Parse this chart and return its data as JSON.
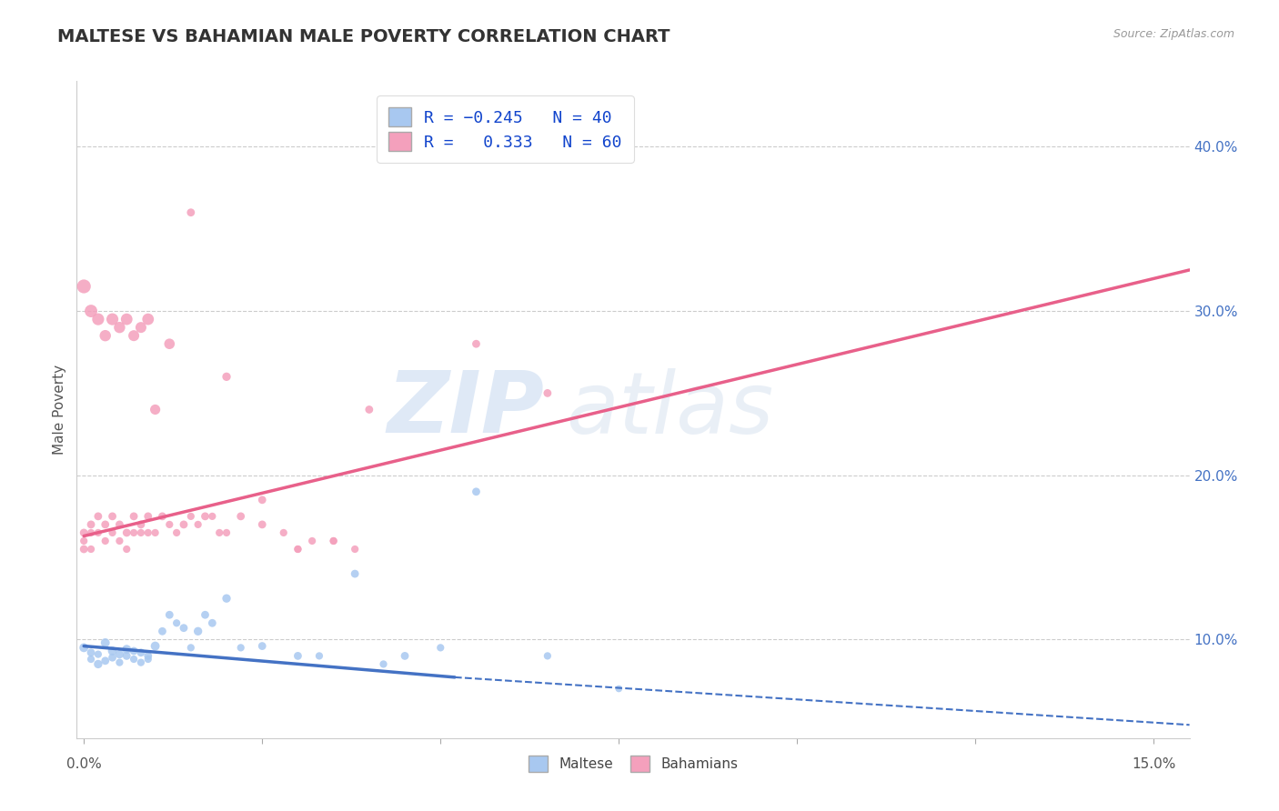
{
  "title": "MALTESE VS BAHAMIAN MALE POVERTY CORRELATION CHART",
  "source": "Source: ZipAtlas.com",
  "ylabel": "Male Poverty",
  "y_ticks": [
    0.1,
    0.2,
    0.3,
    0.4
  ],
  "y_tick_labels": [
    "10.0%",
    "20.0%",
    "30.0%",
    "40.0%"
  ],
  "xlim": [
    -0.001,
    0.155
  ],
  "ylim": [
    0.04,
    0.44
  ],
  "R_blue": -0.245,
  "N_blue": 40,
  "R_pink": 0.333,
  "N_pink": 60,
  "blue_color": "#A8C8F0",
  "pink_color": "#F4A0BC",
  "blue_line_color": "#4472C4",
  "pink_line_color": "#E8608A",
  "watermark_zip": "ZIP",
  "watermark_atlas": "atlas",
  "title_fontsize": 14,
  "label_fontsize": 11,
  "tick_fontsize": 11,
  "blue_scatter_x": [
    0.0,
    0.001,
    0.001,
    0.002,
    0.002,
    0.003,
    0.003,
    0.004,
    0.004,
    0.005,
    0.005,
    0.006,
    0.006,
    0.007,
    0.007,
    0.008,
    0.008,
    0.009,
    0.009,
    0.01,
    0.011,
    0.012,
    0.013,
    0.014,
    0.015,
    0.016,
    0.017,
    0.018,
    0.02,
    0.022,
    0.025,
    0.03,
    0.033,
    0.038,
    0.042,
    0.045,
    0.05,
    0.055,
    0.065,
    0.075
  ],
  "blue_scatter_y": [
    0.095,
    0.092,
    0.088,
    0.085,
    0.091,
    0.098,
    0.087,
    0.093,
    0.089,
    0.091,
    0.086,
    0.09,
    0.094,
    0.088,
    0.093,
    0.086,
    0.092,
    0.09,
    0.088,
    0.096,
    0.105,
    0.115,
    0.11,
    0.107,
    0.095,
    0.105,
    0.115,
    0.11,
    0.125,
    0.095,
    0.096,
    0.09,
    0.09,
    0.14,
    0.085,
    0.09,
    0.095,
    0.19,
    0.09,
    0.07
  ],
  "blue_scatter_size": [
    50,
    40,
    35,
    45,
    35,
    50,
    40,
    50,
    40,
    45,
    35,
    40,
    50,
    35,
    40,
    35,
    40,
    40,
    35,
    50,
    40,
    40,
    35,
    40,
    35,
    45,
    40,
    40,
    45,
    35,
    40,
    40,
    35,
    40,
    35,
    40,
    35,
    40,
    35,
    30
  ],
  "pink_scatter_x": [
    0.0,
    0.0,
    0.0,
    0.001,
    0.001,
    0.001,
    0.002,
    0.002,
    0.003,
    0.003,
    0.004,
    0.004,
    0.005,
    0.005,
    0.006,
    0.006,
    0.007,
    0.007,
    0.008,
    0.008,
    0.009,
    0.009,
    0.01,
    0.011,
    0.012,
    0.013,
    0.014,
    0.015,
    0.016,
    0.017,
    0.018,
    0.019,
    0.02,
    0.022,
    0.025,
    0.028,
    0.03,
    0.032,
    0.035,
    0.038,
    0.0,
    0.001,
    0.002,
    0.003,
    0.004,
    0.005,
    0.006,
    0.007,
    0.008,
    0.009,
    0.01,
    0.012,
    0.015,
    0.02,
    0.025,
    0.03,
    0.035,
    0.04,
    0.055,
    0.065
  ],
  "pink_scatter_y": [
    0.165,
    0.16,
    0.155,
    0.17,
    0.155,
    0.165,
    0.175,
    0.165,
    0.17,
    0.16,
    0.175,
    0.165,
    0.17,
    0.16,
    0.155,
    0.165,
    0.165,
    0.175,
    0.165,
    0.17,
    0.175,
    0.165,
    0.165,
    0.175,
    0.17,
    0.165,
    0.17,
    0.175,
    0.17,
    0.175,
    0.175,
    0.165,
    0.165,
    0.175,
    0.185,
    0.165,
    0.155,
    0.16,
    0.16,
    0.155,
    0.315,
    0.3,
    0.295,
    0.285,
    0.295,
    0.29,
    0.295,
    0.285,
    0.29,
    0.295,
    0.24,
    0.28,
    0.36,
    0.26,
    0.17,
    0.155,
    0.16,
    0.24,
    0.28,
    0.25
  ],
  "pink_scatter_size": [
    40,
    35,
    40,
    40,
    35,
    35,
    40,
    35,
    40,
    35,
    40,
    35,
    40,
    35,
    35,
    40,
    35,
    40,
    35,
    40,
    40,
    35,
    35,
    40,
    35,
    35,
    40,
    35,
    35,
    40,
    35,
    35,
    35,
    40,
    40,
    35,
    35,
    35,
    35,
    35,
    120,
    100,
    90,
    80,
    90,
    80,
    85,
    75,
    75,
    85,
    65,
    70,
    40,
    45,
    40,
    35,
    35,
    40,
    40,
    40
  ],
  "blue_line_x0": 0.0,
  "blue_line_x_solid_end": 0.052,
  "blue_line_x_dashed_end": 0.155,
  "blue_line_y0": 0.096,
  "blue_line_y_solid_end": 0.077,
  "blue_line_y_dashed_end": 0.048,
  "pink_line_x0": 0.0,
  "pink_line_x1": 0.155,
  "pink_line_y0": 0.163,
  "pink_line_y1": 0.325
}
